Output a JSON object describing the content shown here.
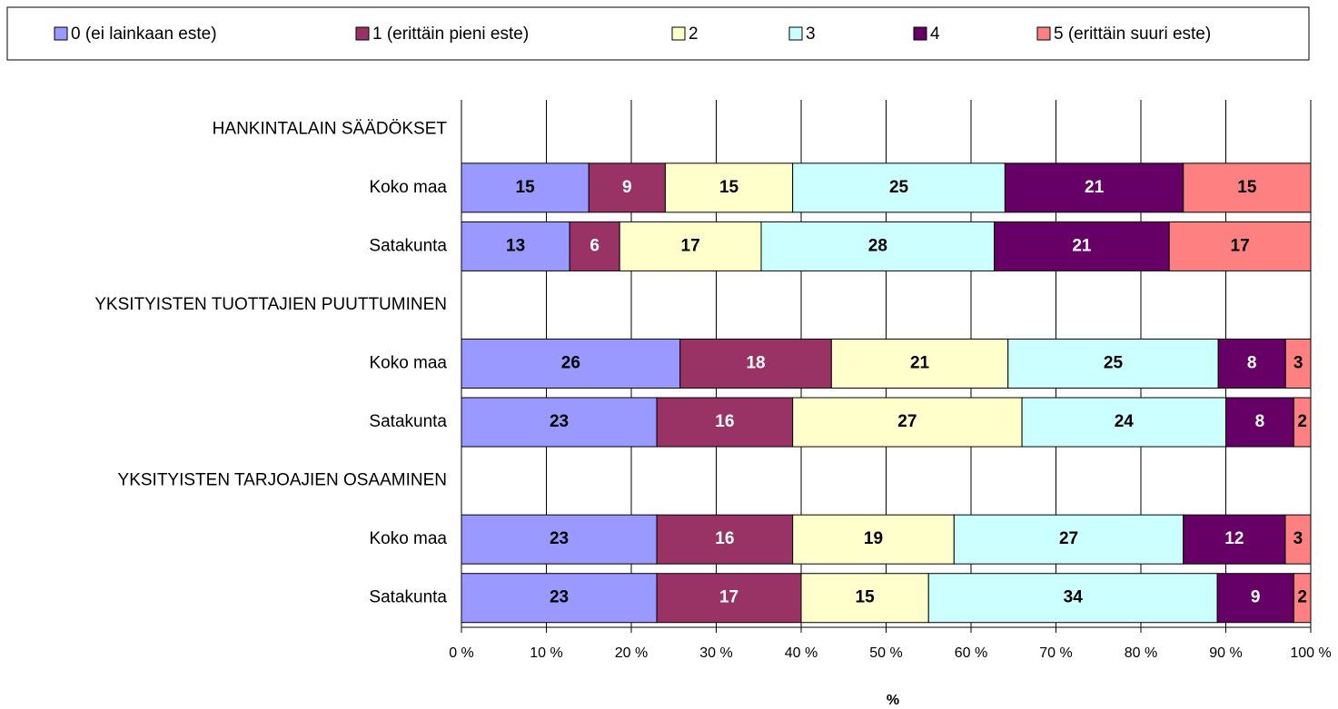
{
  "chart_data": {
    "type": "bar",
    "orientation": "horizontal",
    "stacking": "percent",
    "legend": "top",
    "x_label": "%",
    "categories": [
      "HANKINTALAIN SÄÄDÖKSET",
      "Koko maa",
      "Satakunta",
      "YKSITYISTEN TUOTTAJIEN PUUTTUMINEN",
      "Koko maa",
      "Satakunta",
      "YKSITYISTEN TARJOAJIEN OSAAMINEN",
      "Koko maa",
      "Satakunta"
    ],
    "series": [
      {
        "name": "0 (ei lainkaan este)",
        "color": "#9999ff",
        "values": [
          null,
          15,
          13,
          null,
          26,
          23,
          null,
          23,
          23
        ]
      },
      {
        "name": "1 (erittäin pieni este)",
        "color": "#993366",
        "values": [
          null,
          9,
          6,
          null,
          18,
          16,
          null,
          16,
          17
        ]
      },
      {
        "name": "2",
        "color": "#ffffcc",
        "values": [
          null,
          15,
          17,
          null,
          21,
          27,
          null,
          19,
          15
        ]
      },
      {
        "name": "3",
        "color": "#ccffff",
        "values": [
          null,
          25,
          28,
          null,
          25,
          24,
          null,
          27,
          34
        ]
      },
      {
        "name": "4",
        "color": "#660066",
        "values": [
          null,
          21,
          21,
          null,
          8,
          8,
          null,
          12,
          9
        ]
      },
      {
        "name": "5 (erittäin suuri este)",
        "color": "#ff8080",
        "values": [
          null,
          15,
          17,
          null,
          3,
          2,
          null,
          3,
          2
        ]
      }
    ],
    "xlim": [
      0,
      100
    ],
    "xticks": [
      {
        "value": 0,
        "label": "0 %"
      },
      {
        "value": 10,
        "label": "10 %"
      },
      {
        "value": 20,
        "label": "20 %"
      },
      {
        "value": 30,
        "label": "30 %"
      },
      {
        "value": 40,
        "label": "40 %"
      },
      {
        "value": 50,
        "label": "50 %"
      },
      {
        "value": 60,
        "label": "60 %"
      },
      {
        "value": 70,
        "label": "70 %"
      },
      {
        "value": 80,
        "label": "80 %"
      },
      {
        "value": 90,
        "label": "90 %"
      },
      {
        "value": 100,
        "label": "100 %"
      }
    ],
    "grid": true
  }
}
